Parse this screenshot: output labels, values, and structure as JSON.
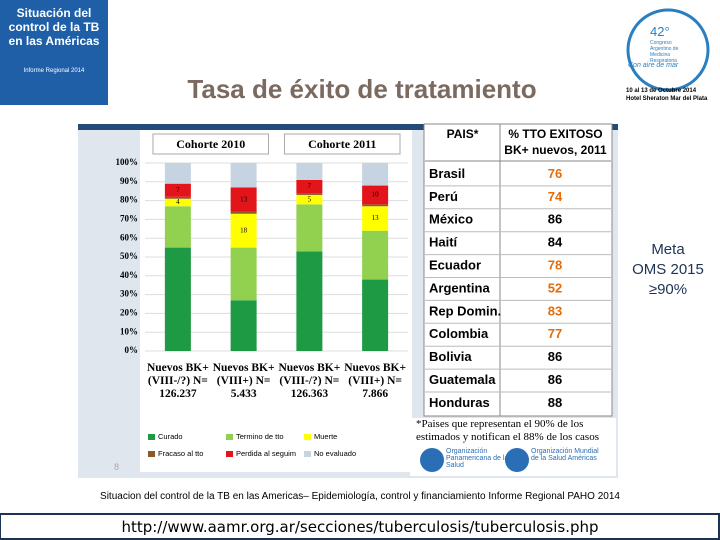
{
  "slide": {
    "title": "Tasa de éxito de tratamiento",
    "cover": {
      "title": "Situación del control de la TB en las Américas",
      "subtitle": "Informe Regional 2014"
    },
    "event": {
      "number": "42°",
      "name": "Congreso Argentino de Medicina Respiratoria",
      "motto": "Con aire de mar",
      "dates": "10 al 13 de Octubre 2014",
      "venue": "Hotel Sheraton Mar del Plata"
    },
    "goal": [
      "Meta",
      "OMS 2015",
      "≥90%"
    ],
    "page_number": "8",
    "source": "Situacion del control de la TB en las Americas– Epidemiología, control y financiamiento Informe Regional PAHO 2014",
    "url": "http://www.aamr.org.ar/secciones/tuberculosis/tuberculosis.php",
    "logos": [
      "Organización Panamericana de la Salud",
      "Organización Mundial de la Salud Américas"
    ]
  },
  "chart_data": {
    "type": "stacked_bar",
    "groups": [
      "Cohorte 2010",
      "Cohorte 2011"
    ],
    "categories": [
      "Nuevos BK+ (VIII-/?) N= 126.237",
      "Nuevos BK+ (VIII+) N= 5.433",
      "Nuevos BK+ (VIII-/?) N= 126.363",
      "Nuevos BK+ (VIII+) N= 7.866"
    ],
    "series": [
      {
        "name": "Curado",
        "color": "#1e9a45",
        "values": [
          55,
          27,
          53,
          38
        ]
      },
      {
        "name": "Termino de tto",
        "color": "#92d050",
        "values": [
          22,
          28,
          25,
          26
        ]
      },
      {
        "name": "Muerte",
        "color": "#ffff00",
        "values": [
          4,
          18,
          5,
          13
        ],
        "labels": true
      },
      {
        "name": "Fracaso al tto",
        "color": "#8b5a2b",
        "values": [
          1,
          1,
          1,
          1
        ]
      },
      {
        "name": "Perdida al seguim",
        "color": "#e3151a",
        "values": [
          7,
          13,
          7,
          10
        ],
        "labels": true
      },
      {
        "name": "No evaluado",
        "color": "#c6d3e0",
        "values": [
          11,
          13,
          9,
          12
        ]
      }
    ],
    "ylim": [
      0,
      100
    ],
    "yticks": [
      {
        "value": 0,
        "label": "0%"
      },
      {
        "value": 10,
        "label": "10%"
      },
      {
        "value": 20,
        "label": "20%"
      },
      {
        "value": 30,
        "label": "30%"
      },
      {
        "value": 40,
        "label": "40%"
      },
      {
        "value": 50,
        "label": "50%"
      },
      {
        "value": 60,
        "label": "60%"
      },
      {
        "value": 70,
        "label": "70%"
      },
      {
        "value": 80,
        "label": "80%"
      },
      {
        "value": 90,
        "label": "90%"
      },
      {
        "value": 100,
        "label": "100%"
      }
    ],
    "grid": true
  },
  "table": {
    "header": [
      "PAIS*",
      "% TTO EXITOSO BK+ nuevos, 2011"
    ],
    "rows": [
      [
        "Brasil",
        76,
        "#e46c0a"
      ],
      [
        "Perú",
        74,
        "#e46c0a"
      ],
      [
        "México",
        86,
        "#000000"
      ],
      [
        "Haití",
        84,
        "#000000"
      ],
      [
        "Ecuador",
        78,
        "#e46c0a"
      ],
      [
        "Argentina",
        52,
        "#e46c0a"
      ],
      [
        "Rep Domin.",
        83,
        "#e46c0a"
      ],
      [
        "Colombia",
        77,
        "#e46c0a"
      ],
      [
        "Bolivia",
        86,
        "#000000"
      ],
      [
        "Guatemala",
        86,
        "#000000"
      ],
      [
        "Honduras",
        88,
        "#000000"
      ]
    ],
    "footnote": "*Paises que representan el 90% de los estimados y notifican el 88% de los casos"
  }
}
